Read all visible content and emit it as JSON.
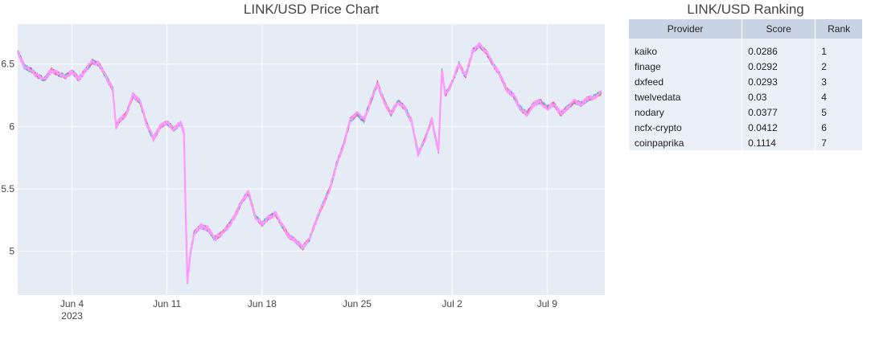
{
  "chart_data": {
    "type": "line",
    "title": "LINK/USD Price Chart",
    "xlabel": "",
    "ylabel": "",
    "x_range": [
      "2023-05-31",
      "2023-07-13"
    ],
    "ylim": [
      4.65,
      6.82
    ],
    "y_ticks": [
      5,
      5.5,
      6,
      6.5
    ],
    "x_ticks": [
      {
        "date": "2023-06-04",
        "label": "Jun 4",
        "sublabel": "2023"
      },
      {
        "date": "2023-06-11",
        "label": "Jun 11",
        "sublabel": ""
      },
      {
        "date": "2023-06-18",
        "label": "Jun 18",
        "sublabel": ""
      },
      {
        "date": "2023-06-25",
        "label": "Jun 25",
        "sublabel": ""
      },
      {
        "date": "2023-07-02",
        "label": "Jul 2",
        "sublabel": ""
      },
      {
        "date": "2023-07-09",
        "label": "Jul 9",
        "sublabel": ""
      }
    ],
    "grid": true,
    "background": "#e5ecf6",
    "series_colors": [
      "#636efa",
      "#ef553b",
      "#00cc96",
      "#ab63fa",
      "#ffa15a",
      "#19d3f3",
      "#ff6692",
      "#ff97ff"
    ],
    "points": [
      [
        "2023-05-31T00:00",
        6.6
      ],
      [
        "2023-05-31T06:00",
        6.54
      ],
      [
        "2023-05-31T12:00",
        6.48
      ],
      [
        "2023-06-01T00:00",
        6.45
      ],
      [
        "2023-06-01T12:00",
        6.4
      ],
      [
        "2023-06-02T00:00",
        6.38
      ],
      [
        "2023-06-02T12:00",
        6.45
      ],
      [
        "2023-06-03T00:00",
        6.42
      ],
      [
        "2023-06-03T12:00",
        6.4
      ],
      [
        "2023-06-04T00:00",
        6.44
      ],
      [
        "2023-06-04T12:00",
        6.38
      ],
      [
        "2023-06-05T00:00",
        6.45
      ],
      [
        "2023-06-05T12:00",
        6.52
      ],
      [
        "2023-06-06T00:00",
        6.5
      ],
      [
        "2023-06-06T12:00",
        6.4
      ],
      [
        "2023-06-07T00:00",
        6.3
      ],
      [
        "2023-06-07T06:00",
        6.0
      ],
      [
        "2023-06-07T12:00",
        6.05
      ],
      [
        "2023-06-08T00:00",
        6.1
      ],
      [
        "2023-06-08T12:00",
        6.25
      ],
      [
        "2023-06-09T00:00",
        6.2
      ],
      [
        "2023-06-09T12:00",
        6.02
      ],
      [
        "2023-06-10T00:00",
        5.9
      ],
      [
        "2023-06-10T12:00",
        6.0
      ],
      [
        "2023-06-11T00:00",
        6.03
      ],
      [
        "2023-06-11T12:00",
        5.98
      ],
      [
        "2023-06-12T00:00",
        6.03
      ],
      [
        "2023-06-12T06:00",
        5.95
      ],
      [
        "2023-06-12T09:00",
        5.3
      ],
      [
        "2023-06-12T12:00",
        4.76
      ],
      [
        "2023-06-12T18:00",
        5.0
      ],
      [
        "2023-06-13T00:00",
        5.15
      ],
      [
        "2023-06-13T12:00",
        5.2
      ],
      [
        "2023-06-14T00:00",
        5.18
      ],
      [
        "2023-06-14T12:00",
        5.1
      ],
      [
        "2023-06-15T00:00",
        5.14
      ],
      [
        "2023-06-15T12:00",
        5.2
      ],
      [
        "2023-06-16T00:00",
        5.28
      ],
      [
        "2023-06-16T12:00",
        5.4
      ],
      [
        "2023-06-17T00:00",
        5.47
      ],
      [
        "2023-06-17T12:00",
        5.28
      ],
      [
        "2023-06-18T00:00",
        5.22
      ],
      [
        "2023-06-18T12:00",
        5.27
      ],
      [
        "2023-06-19T00:00",
        5.3
      ],
      [
        "2023-06-19T12:00",
        5.2
      ],
      [
        "2023-06-20T00:00",
        5.12
      ],
      [
        "2023-06-20T12:00",
        5.08
      ],
      [
        "2023-06-21T00:00",
        5.03
      ],
      [
        "2023-06-21T12:00",
        5.1
      ],
      [
        "2023-06-22T00:00",
        5.25
      ],
      [
        "2023-06-22T12:00",
        5.38
      ],
      [
        "2023-06-23T00:00",
        5.5
      ],
      [
        "2023-06-23T12:00",
        5.7
      ],
      [
        "2023-06-24T00:00",
        5.85
      ],
      [
        "2023-06-24T12:00",
        6.05
      ],
      [
        "2023-06-25T00:00",
        6.1
      ],
      [
        "2023-06-25T12:00",
        6.05
      ],
      [
        "2023-06-26T00:00",
        6.2
      ],
      [
        "2023-06-26T12:00",
        6.35
      ],
      [
        "2023-06-27T00:00",
        6.2
      ],
      [
        "2023-06-27T12:00",
        6.1
      ],
      [
        "2023-06-28T00:00",
        6.2
      ],
      [
        "2023-06-28T12:00",
        6.15
      ],
      [
        "2023-06-29T00:00",
        6.05
      ],
      [
        "2023-06-29T12:00",
        5.78
      ],
      [
        "2023-06-30T00:00",
        5.9
      ],
      [
        "2023-06-30T12:00",
        6.05
      ],
      [
        "2023-07-01T00:00",
        5.8
      ],
      [
        "2023-07-01T06:00",
        6.45
      ],
      [
        "2023-07-01T12:00",
        6.25
      ],
      [
        "2023-07-02T00:00",
        6.35
      ],
      [
        "2023-07-02T12:00",
        6.5
      ],
      [
        "2023-07-03T00:00",
        6.4
      ],
      [
        "2023-07-03T12:00",
        6.6
      ],
      [
        "2023-07-04T00:00",
        6.65
      ],
      [
        "2023-07-04T12:00",
        6.6
      ],
      [
        "2023-07-05T00:00",
        6.5
      ],
      [
        "2023-07-05T12:00",
        6.42
      ],
      [
        "2023-07-06T00:00",
        6.3
      ],
      [
        "2023-07-06T12:00",
        6.25
      ],
      [
        "2023-07-07T00:00",
        6.15
      ],
      [
        "2023-07-07T12:00",
        6.1
      ],
      [
        "2023-07-08T00:00",
        6.18
      ],
      [
        "2023-07-08T12:00",
        6.2
      ],
      [
        "2023-07-09T00:00",
        6.15
      ],
      [
        "2023-07-09T12:00",
        6.18
      ],
      [
        "2023-07-10T00:00",
        6.1
      ],
      [
        "2023-07-10T12:00",
        6.15
      ],
      [
        "2023-07-11T00:00",
        6.2
      ],
      [
        "2023-07-11T12:00",
        6.18
      ],
      [
        "2023-07-12T00:00",
        6.22
      ],
      [
        "2023-07-12T12:00",
        6.24
      ],
      [
        "2023-07-13T00:00",
        6.27
      ]
    ]
  },
  "ranking": {
    "title": "LINK/USD Ranking",
    "columns": [
      "Provider",
      "Score",
      "Rank"
    ],
    "rows": [
      {
        "provider": "kaiko",
        "score": "0.0286",
        "rank": "1"
      },
      {
        "provider": "finage",
        "score": "0.0292",
        "rank": "2"
      },
      {
        "provider": "dxfeed",
        "score": "0.0293",
        "rank": "3"
      },
      {
        "provider": "twelvedata",
        "score": "0.03",
        "rank": "4"
      },
      {
        "provider": "nodary",
        "score": "0.0377",
        "rank": "5"
      },
      {
        "provider": "ncfx-crypto",
        "score": "0.0412",
        "rank": "6"
      },
      {
        "provider": "coinpaprika",
        "score": "0.1114",
        "rank": "7"
      }
    ]
  }
}
